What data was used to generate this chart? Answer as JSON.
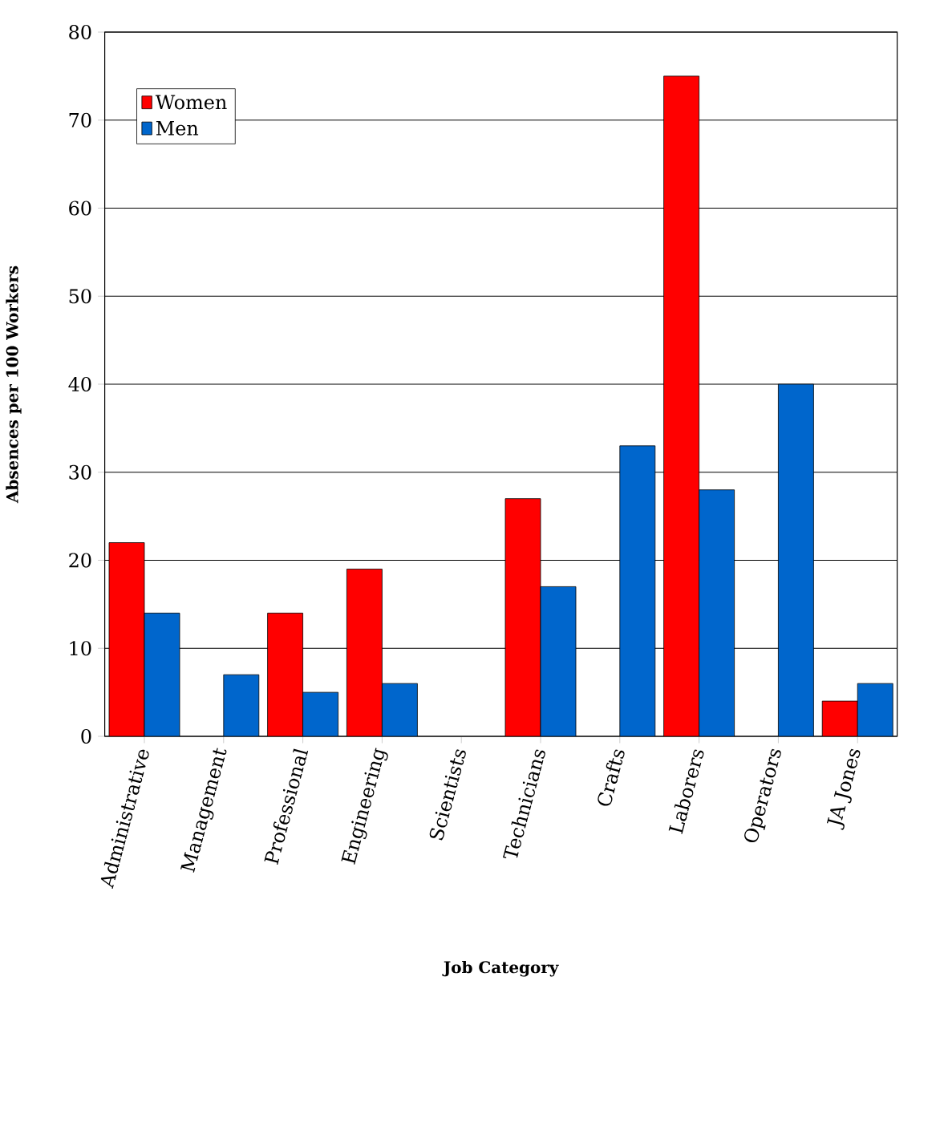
{
  "chart_data": {
    "type": "bar",
    "categories": [
      "Administrative",
      "Management",
      "Professional",
      "Engineering",
      "Scientists",
      "Technicians",
      "Crafts",
      "Laborers",
      "Operators",
      "JA Jones"
    ],
    "series": [
      {
        "name": "Women",
        "color": "#ff0000",
        "values": [
          22,
          null,
          14,
          19,
          null,
          27,
          null,
          75,
          null,
          4
        ]
      },
      {
        "name": "Men",
        "color": "#0066cc",
        "values": [
          14,
          7,
          5,
          6,
          null,
          17,
          33,
          28,
          40,
          6
        ]
      }
    ],
    "xlabel": "Job Category",
    "ylabel": "Absences per 100 Workers",
    "ylim": [
      0,
      80
    ],
    "yticks": [
      0,
      10,
      20,
      30,
      40,
      50,
      60,
      70,
      80
    ],
    "grid": "y",
    "legend": "top left"
  }
}
